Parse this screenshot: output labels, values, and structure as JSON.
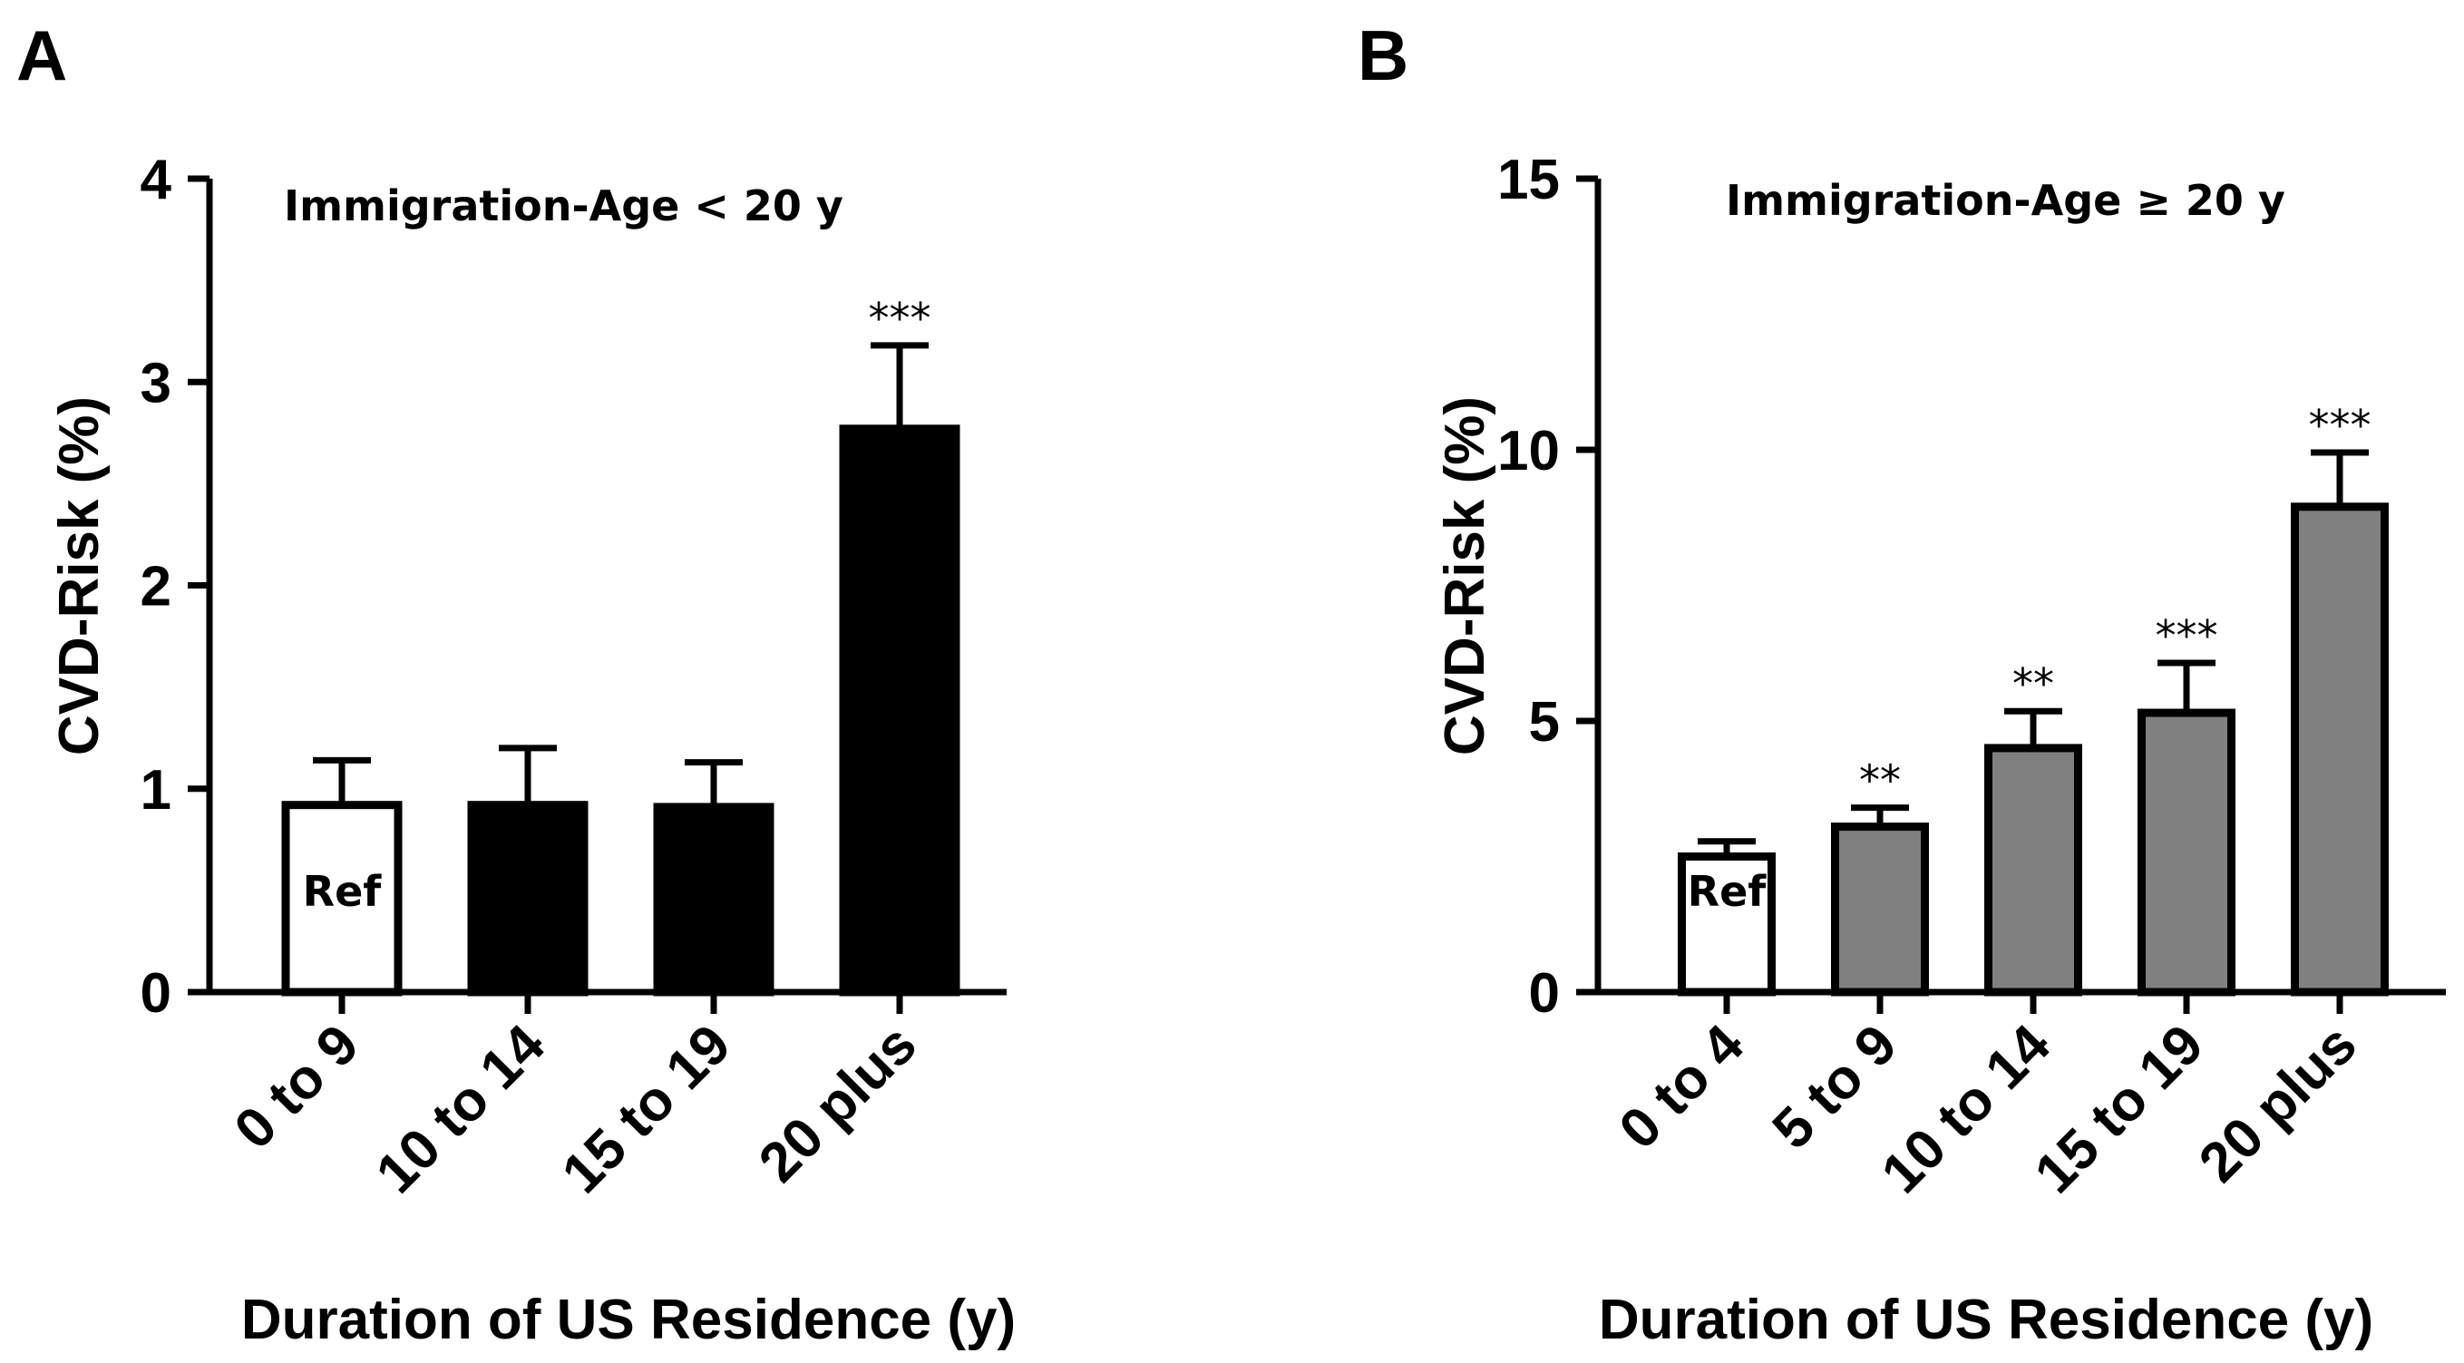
{
  "chart_data": [
    {
      "panel": "A",
      "type": "bar",
      "title": "Immigration-Age  < 20 y",
      "xlabel": "Duration of US Residence (y)",
      "ylabel": "CVD-Risk (%)",
      "ylim": [
        0,
        4
      ],
      "yticks": [
        "0",
        "1",
        "2",
        "3",
        "4"
      ],
      "categories": [
        "0 to 9",
        "10 to 14",
        "15 to 19",
        "20 plus"
      ],
      "values": [
        0.92,
        0.92,
        0.91,
        2.77
      ],
      "errors": [
        0.22,
        0.28,
        0.22,
        0.41
      ],
      "annotations": [
        "Ref",
        "",
        "",
        "***"
      ],
      "colors": [
        "#ffffff",
        "#000000",
        "#000000",
        "#000000"
      ]
    },
    {
      "panel": "B",
      "type": "bar",
      "title": "Immigration-Age  ≥ 20 y",
      "xlabel": "Duration of US Residence (y)",
      "ylabel": "CVD-Risk (%)",
      "ylim": [
        0,
        15
      ],
      "yticks": [
        "0",
        "5",
        "10",
        "15"
      ],
      "categories": [
        "0 to 4",
        "5 to 9",
        "10 to 14",
        "15 to 19",
        "20 plus"
      ],
      "values": [
        2.5,
        3.05,
        4.5,
        5.15,
        8.95
      ],
      "errors": [
        0.28,
        0.35,
        0.68,
        0.92,
        1.0
      ],
      "annotations": [
        "Ref",
        "**",
        "**",
        "***",
        "***"
      ],
      "colors": [
        "#ffffff",
        "#808080",
        "#808080",
        "#808080",
        "#808080"
      ]
    }
  ]
}
